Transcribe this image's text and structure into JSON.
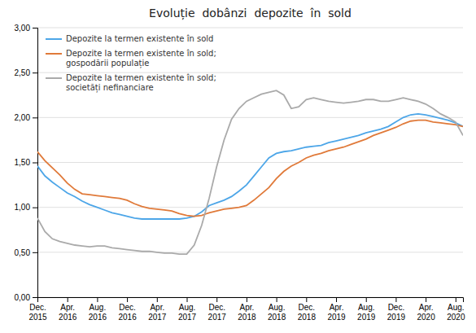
{
  "chart_data": {
    "type": "line",
    "title": "Evoluție  dobânzi  depozite  în  sold",
    "categories": [
      "Dec.\n2015",
      null,
      null,
      null,
      "Apr.\n2016",
      null,
      null,
      null,
      "Aug.\n2016",
      null,
      null,
      null,
      "Dec.\n2016",
      null,
      null,
      null,
      "Apr.\n2017",
      null,
      null,
      null,
      "Aug.\n2017",
      null,
      null,
      null,
      "Dec.\n2017",
      null,
      null,
      null,
      "Apr.\n2018",
      null,
      null,
      null,
      "Aug.\n2018",
      null,
      null,
      null,
      "Dec.\n2018",
      null,
      null,
      null,
      "Apr.\n2019",
      null,
      null,
      null,
      "Aug.\n2019",
      null,
      null,
      null,
      "Dec.\n2019",
      null,
      null,
      null,
      "Apr.\n2020",
      null,
      null,
      null,
      "Aug.\n2020",
      null
    ],
    "series": [
      {
        "name": "Depozite la termen existente în sold",
        "color": "#4da6e8",
        "values": [
          1.46,
          1.35,
          1.28,
          1.22,
          1.16,
          1.12,
          1.07,
          1.03,
          1.0,
          0.97,
          0.94,
          0.92,
          0.9,
          0.88,
          0.87,
          0.87,
          0.87,
          0.87,
          0.87,
          0.87,
          0.88,
          0.9,
          0.95,
          1.02,
          1.05,
          1.08,
          1.12,
          1.18,
          1.25,
          1.35,
          1.45,
          1.55,
          1.6,
          1.62,
          1.63,
          1.65,
          1.67,
          1.68,
          1.69,
          1.72,
          1.74,
          1.76,
          1.78,
          1.8,
          1.83,
          1.85,
          1.87,
          1.9,
          1.95,
          2.0,
          2.03,
          2.04,
          2.03,
          2.01,
          1.99,
          1.97,
          1.94,
          1.9
        ]
      },
      {
        "name": "Depozite la termen existente în sold;\ngospodării populație",
        "color": "#e07a3a",
        "values": [
          1.62,
          1.52,
          1.44,
          1.36,
          1.27,
          1.2,
          1.15,
          1.14,
          1.13,
          1.12,
          1.11,
          1.1,
          1.08,
          1.04,
          1.01,
          0.99,
          0.98,
          0.97,
          0.96,
          0.93,
          0.91,
          0.9,
          0.91,
          0.94,
          0.96,
          0.98,
          0.99,
          1.0,
          1.02,
          1.08,
          1.15,
          1.22,
          1.32,
          1.4,
          1.46,
          1.5,
          1.55,
          1.58,
          1.6,
          1.63,
          1.65,
          1.67,
          1.7,
          1.73,
          1.76,
          1.8,
          1.83,
          1.86,
          1.89,
          1.93,
          1.96,
          1.97,
          1.97,
          1.95,
          1.94,
          1.93,
          1.92,
          1.9
        ]
      },
      {
        "name": "Depozite la termen existente în sold;\nsocietăți nefinanciare",
        "color": "#aaaaaa",
        "values": [
          0.88,
          0.73,
          0.65,
          0.62,
          0.6,
          0.58,
          0.57,
          0.56,
          0.57,
          0.57,
          0.55,
          0.54,
          0.53,
          0.52,
          0.51,
          0.51,
          0.5,
          0.49,
          0.49,
          0.48,
          0.48,
          0.58,
          0.8,
          1.1,
          1.45,
          1.75,
          1.98,
          2.1,
          2.18,
          2.22,
          2.26,
          2.28,
          2.3,
          2.25,
          2.1,
          2.12,
          2.2,
          2.22,
          2.2,
          2.18,
          2.17,
          2.16,
          2.17,
          2.18,
          2.2,
          2.2,
          2.18,
          2.18,
          2.2,
          2.22,
          2.2,
          2.18,
          2.15,
          2.1,
          2.04,
          2.0,
          1.95,
          1.8
        ]
      }
    ],
    "ylim": [
      0.0,
      3.0
    ],
    "yticks": [
      {
        "value": 0.0,
        "label": "0,00"
      },
      {
        "value": 0.5,
        "label": "0,50"
      },
      {
        "value": 1.0,
        "label": "1,00"
      },
      {
        "value": 1.5,
        "label": "1,50"
      },
      {
        "value": 2.0,
        "label": "2,00"
      },
      {
        "value": 2.5,
        "label": "2,50"
      },
      {
        "value": 3.0,
        "label": "3,00"
      }
    ],
    "grid": true,
    "legend": "upper left"
  }
}
